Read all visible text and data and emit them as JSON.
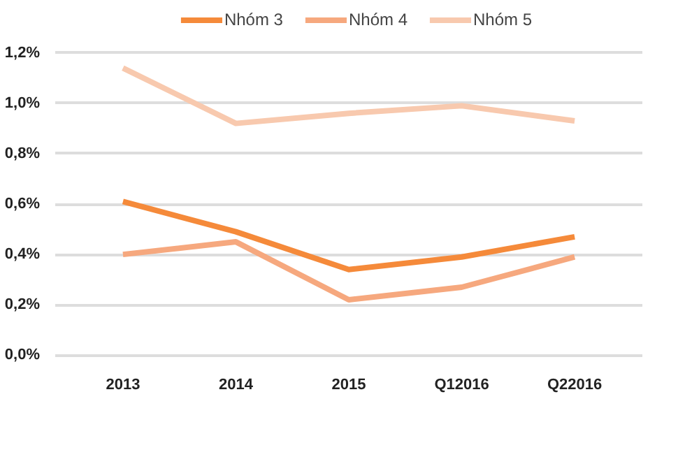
{
  "chart_data": {
    "type": "line",
    "categories": [
      "2013",
      "2014",
      "2015",
      "Q12016",
      "Q22016"
    ],
    "series": [
      {
        "name": "Nhóm 3",
        "color": "#f58a3a",
        "values": [
          0.61,
          0.49,
          0.34,
          0.39,
          0.47
        ]
      },
      {
        "name": "Nhóm 4",
        "color": "#f6a87e",
        "values": [
          0.4,
          0.45,
          0.22,
          0.27,
          0.39
        ]
      },
      {
        "name": "Nhóm 5",
        "color": "#f8c9ae",
        "values": [
          1.14,
          0.92,
          0.96,
          0.99,
          0.93
        ]
      }
    ],
    "ylim": [
      0,
      1.2
    ],
    "yticks": [
      {
        "value": 0,
        "label": "0,0%"
      },
      {
        "value": 0.2,
        "label": "0,2%"
      },
      {
        "value": 0.4,
        "label": "0,4%"
      },
      {
        "value": 0.6,
        "label": "0,6%"
      },
      {
        "value": 0.8,
        "label": "0,8%"
      },
      {
        "value": 1.0,
        "label": "1,0%"
      },
      {
        "value": 1.2,
        "label": "1,2%"
      }
    ],
    "grid": "y",
    "legend": "top",
    "marker": "none",
    "line_style": "solid"
  }
}
